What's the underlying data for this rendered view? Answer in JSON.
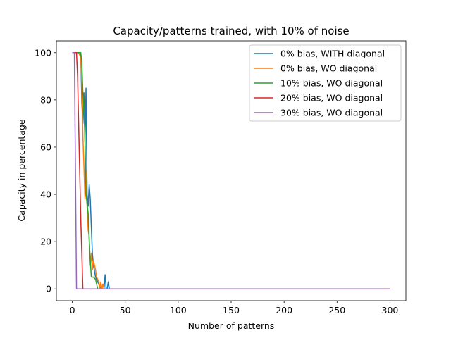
{
  "chart_data": {
    "type": "line",
    "title": "Capacity/patterns trained, with 10% of noise",
    "xlabel": "Number of patterns",
    "ylabel": "Capacity in percentage",
    "xlim": [
      -15,
      315
    ],
    "ylim": [
      -5,
      105
    ],
    "x_ticks": [
      0,
      50,
      100,
      150,
      200,
      250,
      300
    ],
    "y_ticks": [
      0,
      20,
      40,
      60,
      80,
      100
    ],
    "grid": false,
    "legend_position": "top-right",
    "series": [
      {
        "name": "0% bias, WITH diagonal",
        "color": "#1f77b4",
        "points": [
          [
            0,
            100
          ],
          [
            8,
            100
          ],
          [
            9,
            79
          ],
          [
            10,
            70
          ],
          [
            11,
            83
          ],
          [
            12,
            62
          ],
          [
            13,
            85
          ],
          [
            14,
            40
          ],
          [
            15,
            35
          ],
          [
            16,
            44
          ],
          [
            17,
            38
          ],
          [
            18,
            26
          ],
          [
            19,
            15
          ],
          [
            20,
            10
          ],
          [
            22,
            5
          ],
          [
            24,
            3
          ],
          [
            26,
            1
          ],
          [
            28,
            0
          ],
          [
            29,
            2
          ],
          [
            30,
            0
          ],
          [
            31,
            6
          ],
          [
            32,
            0
          ],
          [
            33,
            0
          ],
          [
            34,
            3
          ],
          [
            35,
            0
          ],
          [
            300,
            0
          ]
        ]
      },
      {
        "name": "0% bias, WO diagonal",
        "color": "#ff7f0e",
        "points": [
          [
            0,
            100
          ],
          [
            6,
            100
          ],
          [
            8,
            98
          ],
          [
            9,
            87
          ],
          [
            10,
            65
          ],
          [
            11,
            52
          ],
          [
            12,
            38
          ],
          [
            13,
            50
          ],
          [
            14,
            35
          ],
          [
            15,
            25
          ],
          [
            16,
            22
          ],
          [
            17,
            10
          ],
          [
            18,
            15
          ],
          [
            19,
            8
          ],
          [
            20,
            12
          ],
          [
            22,
            8
          ],
          [
            23,
            5
          ],
          [
            25,
            3
          ],
          [
            26,
            0
          ],
          [
            27,
            3
          ],
          [
            28,
            0
          ],
          [
            29,
            2
          ],
          [
            30,
            0
          ],
          [
            300,
            0
          ]
        ]
      },
      {
        "name": "10% bias, WO diagonal",
        "color": "#2ca02c",
        "points": [
          [
            0,
            100
          ],
          [
            8,
            100
          ],
          [
            9,
            96
          ],
          [
            10,
            83
          ],
          [
            11,
            75
          ],
          [
            12,
            65
          ],
          [
            13,
            40
          ],
          [
            14,
            36
          ],
          [
            15,
            32
          ],
          [
            16,
            20
          ],
          [
            17,
            12
          ],
          [
            18,
            5
          ],
          [
            20,
            5
          ],
          [
            22,
            4
          ],
          [
            24,
            0
          ],
          [
            26,
            0
          ],
          [
            300,
            0
          ]
        ]
      },
      {
        "name": "20% bias, WO diagonal",
        "color": "#d62728",
        "points": [
          [
            0,
            100
          ],
          [
            4,
            100
          ],
          [
            5,
            90
          ],
          [
            8,
            30
          ],
          [
            10,
            0
          ],
          [
            300,
            0
          ]
        ]
      },
      {
        "name": "30% bias, WO diagonal",
        "color": "#9467bd",
        "points": [
          [
            0,
            100
          ],
          [
            2,
            100
          ],
          [
            3,
            50
          ],
          [
            4,
            0
          ],
          [
            300,
            0
          ]
        ]
      }
    ]
  }
}
